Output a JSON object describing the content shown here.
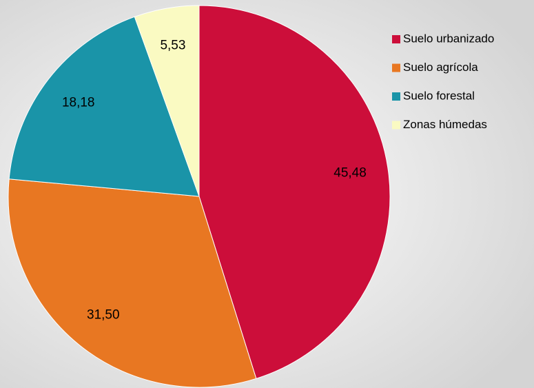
{
  "chart_data": {
    "type": "pie",
    "categories": [
      "Suelo urbanizado",
      "Suelo agrícola",
      "Suelo forestal",
      "Zonas húmedas"
    ],
    "values": [
      45.48,
      31.5,
      18.18,
      5.53
    ],
    "value_labels": [
      "45,48",
      "31,50",
      "18,18",
      "5,53"
    ],
    "colors": [
      "#cc0e3a",
      "#e87722",
      "#1a94a8",
      "#fafac2"
    ],
    "legend": "right"
  }
}
